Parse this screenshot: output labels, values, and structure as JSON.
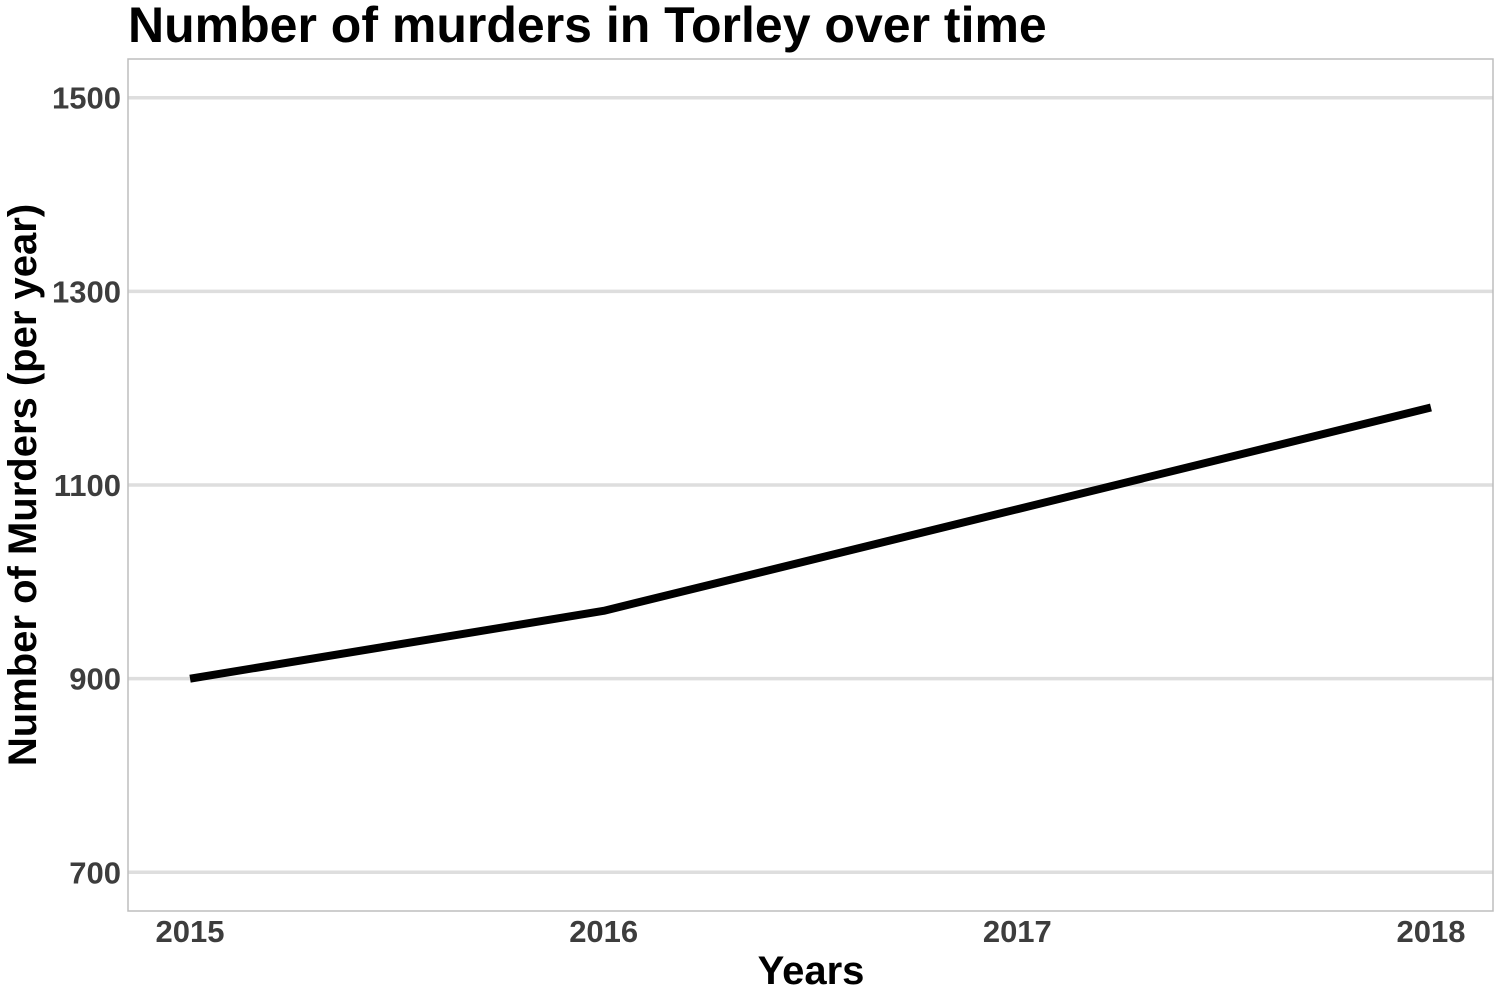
{
  "chart_data": {
    "type": "line",
    "title": "Number of murders in Torley over time",
    "xlabel": "Years",
    "ylabel": "Number of Murders (per year)",
    "x": [
      2015,
      2016,
      2017,
      2018
    ],
    "series": [
      {
        "values": [
          900,
          970,
          1075,
          1180
        ]
      }
    ],
    "xlim": [
      2014.85,
      2018.15
    ],
    "ylim": [
      660,
      1540
    ],
    "xticks": [
      "2015",
      "2016",
      "2017",
      "2018"
    ],
    "yticks": [
      "700",
      "900",
      "1100",
      "1300",
      "1500"
    ],
    "grid": "horizontal",
    "legend": "none",
    "colors": {
      "line": "#000000",
      "grid": "#dedede",
      "panel_border": "#bdbdbd",
      "tick_text": "#3d3d3d"
    }
  }
}
